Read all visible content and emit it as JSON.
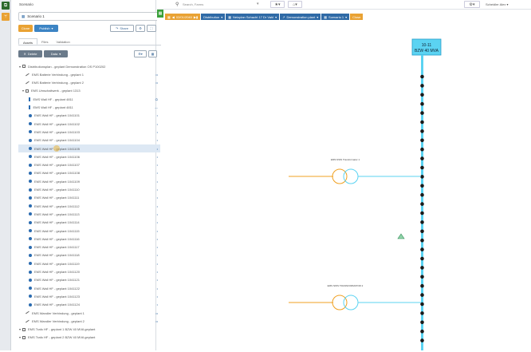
{
  "rail": {
    "top_icon": "⧉",
    "second_icon": "⑂"
  },
  "panel": {
    "title": "Scenario",
    "scenario_value": "Scenario 1",
    "btn_clone": "Clone",
    "btn_publish": "Publish",
    "btn_share": "Share",
    "tabs": [
      "Assets",
      "Files",
      "Validation"
    ],
    "btn_delete": "Delete",
    "btn_more": "Data"
  },
  "toolbar": {
    "search_text": "Search, Farms",
    "user": "Scheidler Alex"
  },
  "breadcrumb": {
    "year_arrow": "◀",
    "year": "02/01/2040",
    "items": [
      "Distribution",
      "Netzplan Schacht 17 Dr Vahl",
      "Demonstration plant",
      "Scenario 1"
    ],
    "close": "Close"
  },
  "tree": [
    {
      "label": "Distributionsplan - geplant Demonstration OS P100202",
      "icon": "sq",
      "indent": 0,
      "right": ""
    },
    {
      "label": "EMS Batterie Verbindung - geplant 1",
      "icon": "link",
      "indent": 2,
      "right": "••"
    },
    {
      "label": "EMS Batterie Verbindung - geplant 2",
      "icon": "link",
      "indent": 2,
      "right": "••"
    },
    {
      "label": "EMS Umschaltwerk - geplant 1313",
      "icon": "sq",
      "indent": 1,
      "right": ""
    },
    {
      "label": "EMS Wall HF - geplant 4811",
      "icon": "bar",
      "indent": 3,
      "right": "⬭"
    },
    {
      "label": "EMS Wall HF - geplant 4811",
      "icon": "bar",
      "indent": 3,
      "right": "—"
    },
    {
      "label": "EMS Wall HF - geplant 1041101",
      "icon": "dot",
      "indent": 3,
      "right": "•"
    },
    {
      "label": "EMS Wall HF - geplant 1041102",
      "icon": "dot",
      "indent": 3,
      "right": "•"
    },
    {
      "label": "EMS Wall HF - geplant 1041103",
      "icon": "dot",
      "indent": 3,
      "right": "•"
    },
    {
      "label": "EMS Wall HF - geplant 1041104",
      "icon": "dot",
      "indent": 3,
      "right": "•"
    },
    {
      "label": "EMS Wall HF - geplant 1041105",
      "icon": "dot",
      "indent": 3,
      "right": "•",
      "highlight": true
    },
    {
      "label": "EMS Wall HF - geplant 1041106",
      "icon": "dot",
      "indent": 3,
      "right": "•"
    },
    {
      "label": "EMS Wall HF - geplant 1041107",
      "icon": "dot",
      "indent": 3,
      "right": "•"
    },
    {
      "label": "EMS Wall HF - geplant 1041108",
      "icon": "dot",
      "indent": 3,
      "right": "•"
    },
    {
      "label": "EMS Wall HF - geplant 1041109",
      "icon": "dot",
      "indent": 3,
      "right": "•"
    },
    {
      "label": "EMS Wall HF - geplant 1041110",
      "icon": "dot",
      "indent": 3,
      "right": "•"
    },
    {
      "label": "EMS Wall HF - geplant 1041111",
      "icon": "dot",
      "indent": 3,
      "right": "•"
    },
    {
      "label": "EMS Wall HF - geplant 1041112",
      "icon": "dot",
      "indent": 3,
      "right": "•"
    },
    {
      "label": "EMS Wall HF - geplant 1041113",
      "icon": "dot",
      "indent": 3,
      "right": "•"
    },
    {
      "label": "EMS Wall HF - geplant 1041114",
      "icon": "dot",
      "indent": 3,
      "right": "•"
    },
    {
      "label": "EMS Wall HF - geplant 1041115",
      "icon": "dot",
      "indent": 3,
      "right": "•"
    },
    {
      "label": "EMS Wall HF - geplant 1041116",
      "icon": "dot",
      "indent": 3,
      "right": "•"
    },
    {
      "label": "EMS Wall HF - geplant 1041117",
      "icon": "dot",
      "indent": 3,
      "right": "•"
    },
    {
      "label": "EMS Wall HF - geplant 1041118",
      "icon": "dot",
      "indent": 3,
      "right": "•"
    },
    {
      "label": "EMS Wall HF - geplant 1041119",
      "icon": "dot",
      "indent": 3,
      "right": "•"
    },
    {
      "label": "EMS Wall HF - geplant 1041120",
      "icon": "dot",
      "indent": 3,
      "right": "•"
    },
    {
      "label": "EMS Wall HF - geplant 1041121",
      "icon": "dot",
      "indent": 3,
      "right": "•"
    },
    {
      "label": "EMS Wall HF - geplant 1041122",
      "icon": "dot",
      "indent": 3,
      "right": "•"
    },
    {
      "label": "EMS Wall HF - geplant 1041123",
      "icon": "dot",
      "indent": 3,
      "right": "•"
    },
    {
      "label": "EMS Wall HF - geplant 1041124",
      "icon": "dot",
      "indent": 3,
      "right": "•"
    },
    {
      "label": "EMS Wandler Verbindung - geplant 1",
      "icon": "link",
      "indent": 2,
      "right": "••"
    },
    {
      "label": "EMS Wandler Verbindung - geplant 2",
      "icon": "link",
      "indent": 2,
      "right": "••"
    },
    {
      "label": "EMS Trafo HF - geplant 1 BZW 40 MVA geplant",
      "icon": "sq",
      "indent": 0,
      "right": ""
    },
    {
      "label": "EMS Trafo HF - geplant 2 BZW 40 MVA geplant",
      "icon": "sq",
      "indent": 0,
      "right": ""
    }
  ],
  "diagram": {
    "bus_label_1": "10-11",
    "bus_label_2": "BZW 40 MVA",
    "transformer_1_label": "EMS NWS Transformator 1",
    "transformer_2_label": "EMS NWS TRANSFORMATOR 2",
    "bus_color": "#5bd3f2",
    "line_color": "#f0a020",
    "feeder_count": 30
  }
}
